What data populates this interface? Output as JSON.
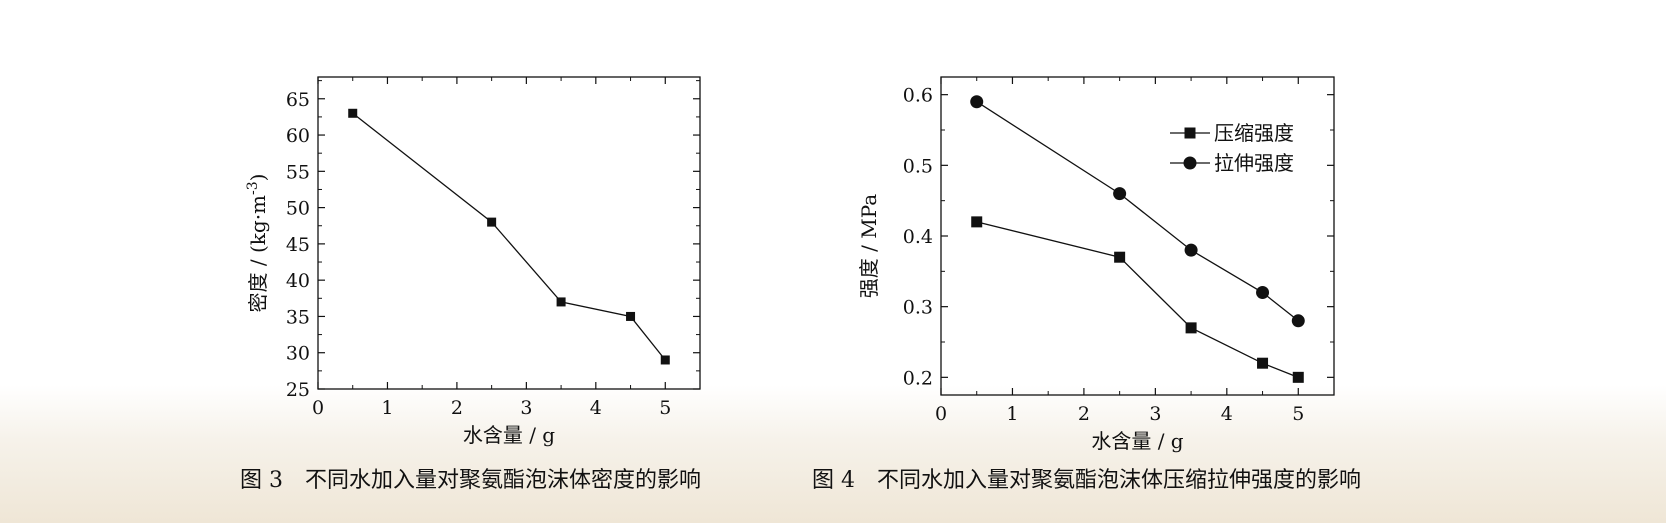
{
  "charts": [
    {
      "caption_label": "图 3",
      "caption_text": "不同水加入量对聚氨酯泡沫体密度的影响"
    },
    {
      "caption_label": "图 4",
      "caption_text": "不同水加入量对聚氨酯泡沫体压缩拉伸强度的影响"
    }
  ],
  "chart_data": [
    {
      "type": "line",
      "title": "",
      "xlabel": "水含量 / g",
      "ylabel": "密度 / (kg·m",
      "ylabel_sup": "-3",
      "ylabel_close": ")",
      "xlim": [
        0,
        5.5
      ],
      "ylim": [
        25,
        68
      ],
      "xticks": [
        0,
        1,
        2,
        3,
        4,
        5
      ],
      "yticks": [
        25,
        30,
        35,
        40,
        45,
        50,
        55,
        60,
        65
      ],
      "grid": false,
      "series": [
        {
          "marker": "square",
          "x": [
            0.5,
            2.5,
            3.5,
            4.5,
            5
          ],
          "y": [
            63,
            48,
            37,
            35,
            29
          ]
        }
      ]
    },
    {
      "type": "line",
      "title": "",
      "xlabel": "水含量 / g",
      "ylabel": "强度 / MPa",
      "xlim": [
        0,
        5.5
      ],
      "ylim": [
        0.175,
        0.625
      ],
      "xticks": [
        0,
        1,
        2,
        3,
        4,
        5
      ],
      "yticks": [
        0.2,
        0.3,
        0.4,
        0.5,
        0.6
      ],
      "grid": false,
      "legend_position": "top-right",
      "series": [
        {
          "name": "压缩强度",
          "marker": "square",
          "x": [
            0.5,
            2.5,
            3.5,
            4.5,
            5
          ],
          "y": [
            0.42,
            0.37,
            0.27,
            0.22,
            0.2
          ]
        },
        {
          "name": "拉伸强度",
          "marker": "circle",
          "x": [
            0.5,
            2.5,
            3.5,
            4.5,
            5
          ],
          "y": [
            0.59,
            0.46,
            0.38,
            0.32,
            0.28
          ]
        }
      ]
    }
  ]
}
